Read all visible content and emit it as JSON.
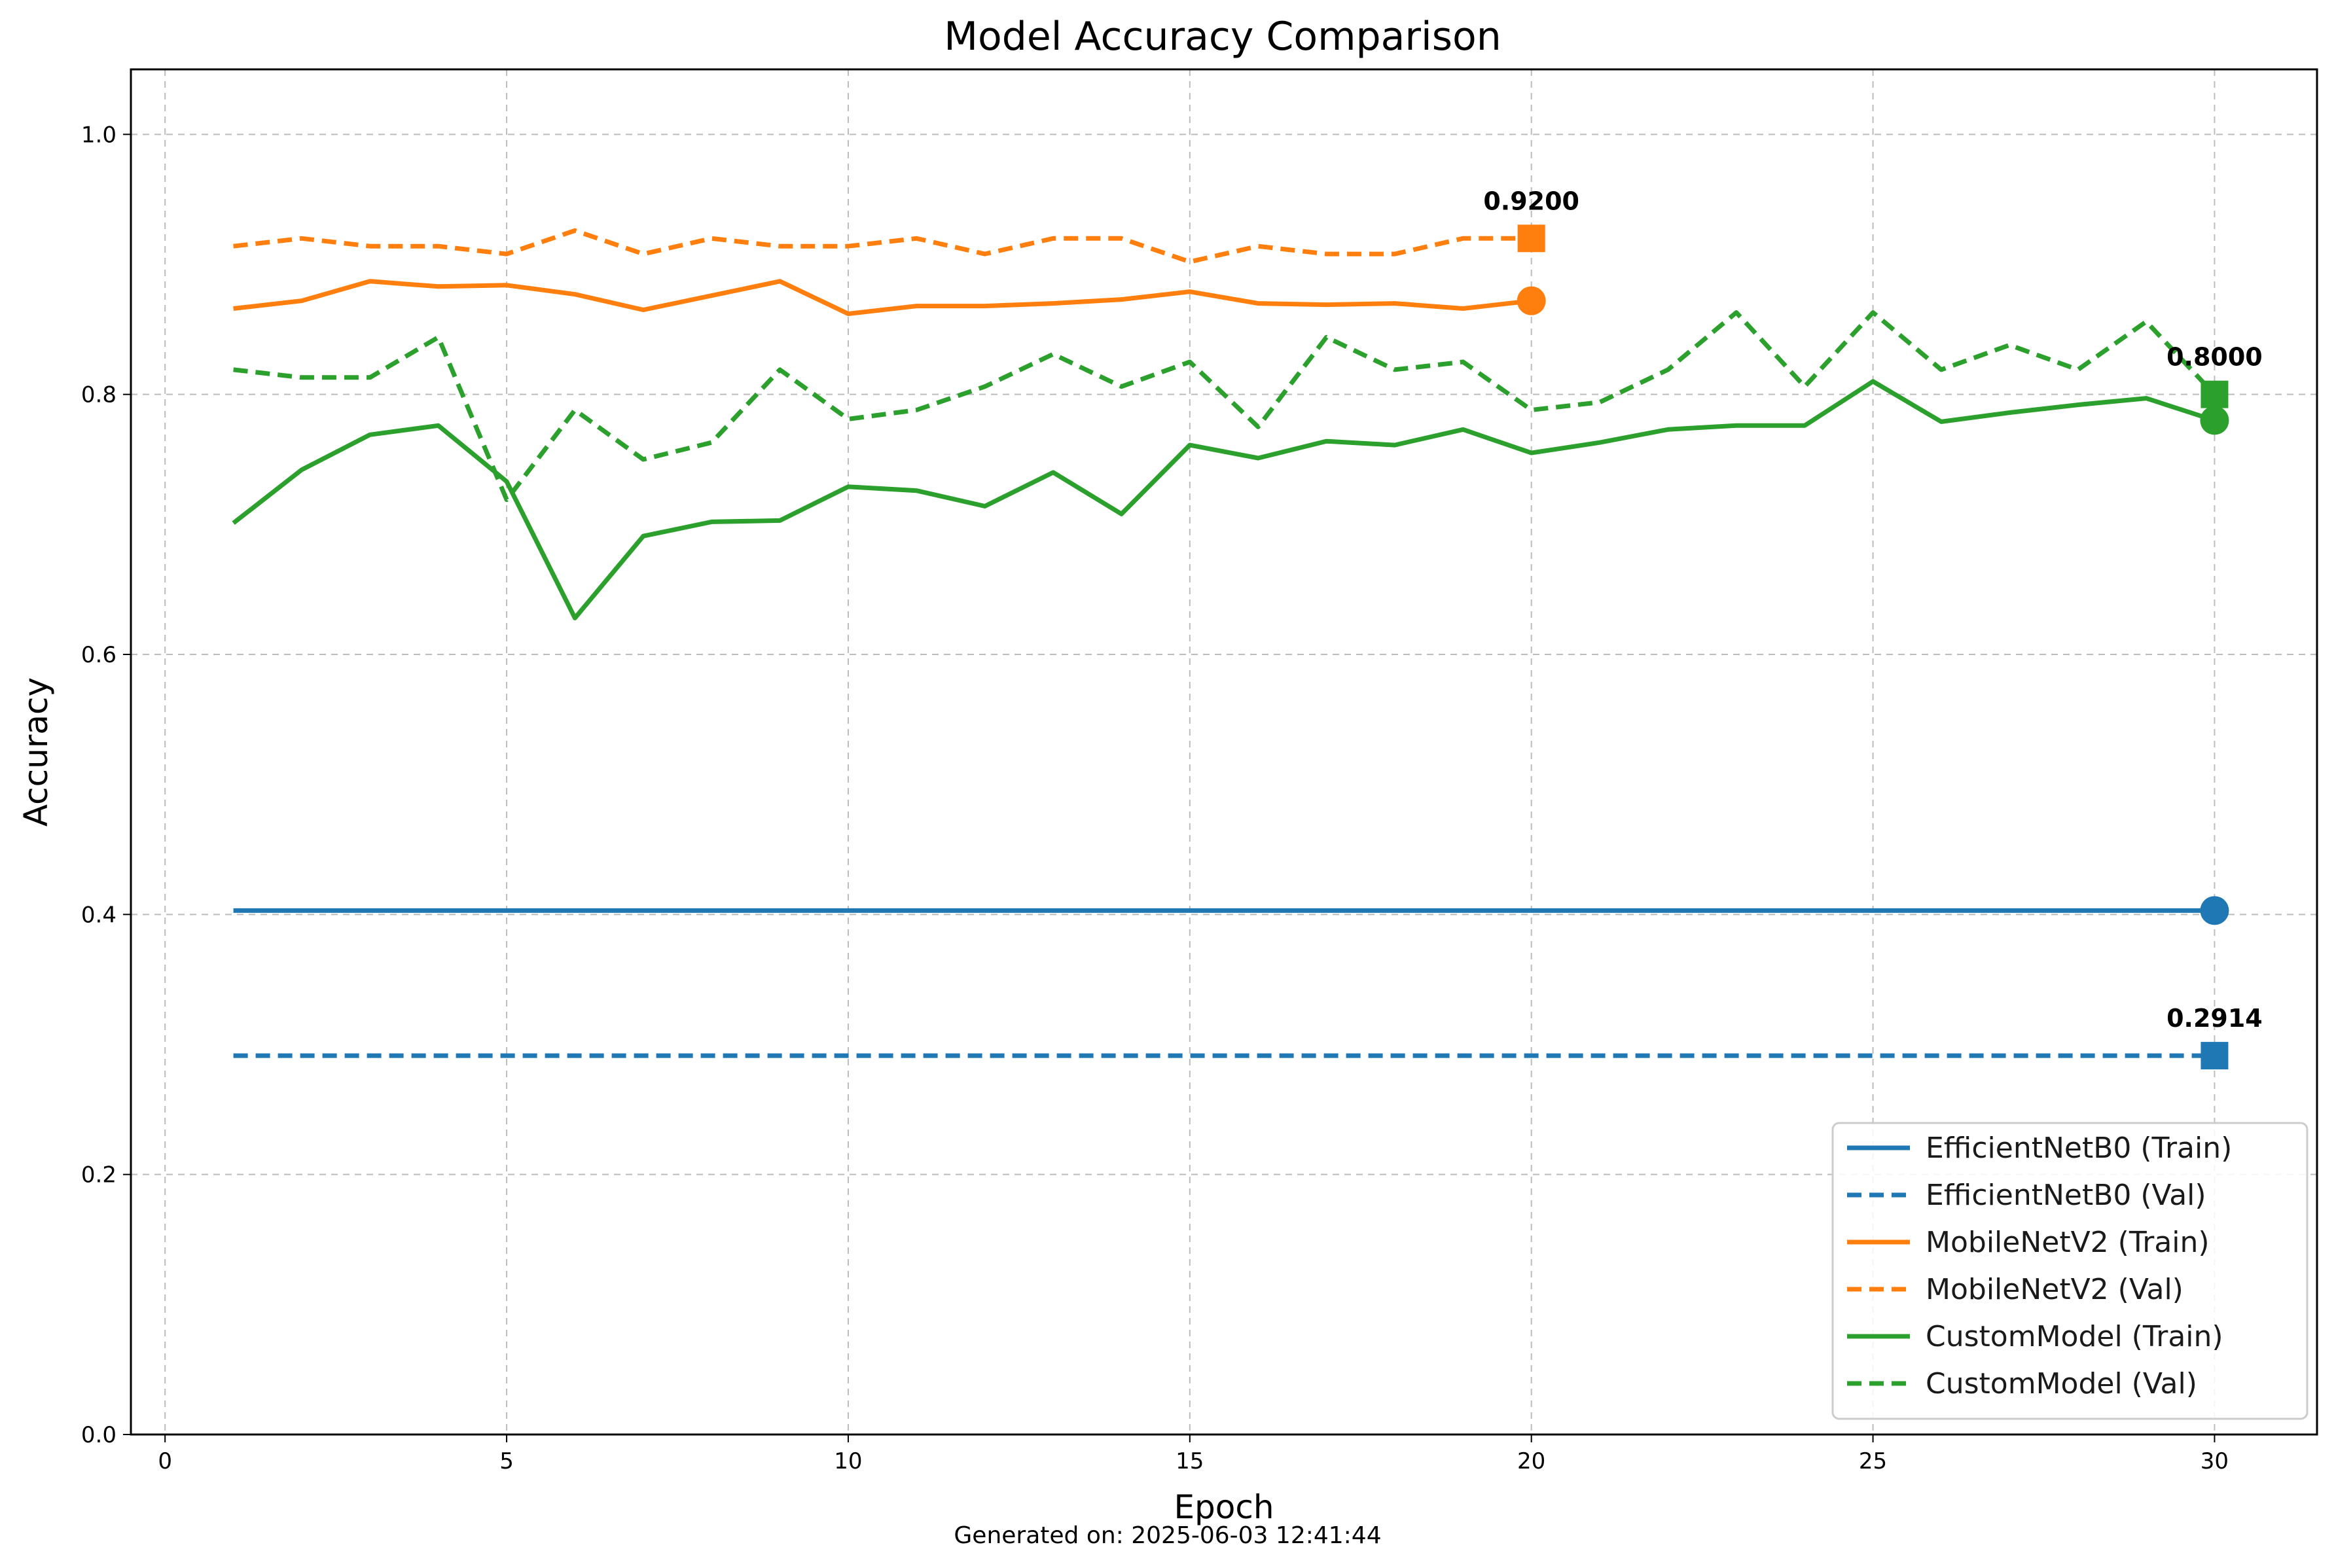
{
  "chart_data": {
    "type": "line",
    "title": "Model Accuracy Comparison",
    "xlabel": "Epoch",
    "ylabel": "Accuracy",
    "xlim": [
      -0.5,
      31.5
    ],
    "ylim": [
      0,
      1.05
    ],
    "xticks": [
      0,
      5,
      10,
      15,
      20,
      25,
      30
    ],
    "yticks": [
      0.0,
      0.2,
      0.4,
      0.6,
      0.8,
      1.0
    ],
    "xtick_labels": [
      "0",
      "5",
      "10",
      "15",
      "20",
      "25",
      "30"
    ],
    "ytick_labels": [
      "0.0",
      "0.2",
      "0.4",
      "0.6",
      "0.8",
      "1.0"
    ],
    "grid": true,
    "legend_position": "bottom-right",
    "series": [
      {
        "name": "EfficientNetB0 (Train)",
        "color": "#1f77b4",
        "style": "solid",
        "end_marker": "circle",
        "x": [
          1,
          2,
          3,
          4,
          5,
          6,
          7,
          8,
          9,
          10,
          11,
          12,
          13,
          14,
          15,
          16,
          17,
          18,
          19,
          20,
          21,
          22,
          23,
          24,
          25,
          26,
          27,
          28,
          29,
          30
        ],
        "y": [
          0.403,
          0.403,
          0.403,
          0.403,
          0.403,
          0.403,
          0.403,
          0.403,
          0.403,
          0.403,
          0.403,
          0.403,
          0.403,
          0.403,
          0.403,
          0.403,
          0.403,
          0.403,
          0.403,
          0.403,
          0.403,
          0.403,
          0.403,
          0.403,
          0.403,
          0.403,
          0.403,
          0.403,
          0.403,
          0.403
        ]
      },
      {
        "name": "EfficientNetB0 (Val)",
        "color": "#1f77b4",
        "style": "dashed",
        "end_marker": "square",
        "x": [
          1,
          2,
          3,
          4,
          5,
          6,
          7,
          8,
          9,
          10,
          11,
          12,
          13,
          14,
          15,
          16,
          17,
          18,
          19,
          20,
          21,
          22,
          23,
          24,
          25,
          26,
          27,
          28,
          29,
          30
        ],
        "y": [
          0.2914,
          0.2914,
          0.2914,
          0.2914,
          0.2914,
          0.2914,
          0.2914,
          0.2914,
          0.2914,
          0.2914,
          0.2914,
          0.2914,
          0.2914,
          0.2914,
          0.2914,
          0.2914,
          0.2914,
          0.2914,
          0.2914,
          0.2914,
          0.2914,
          0.2914,
          0.2914,
          0.2914,
          0.2914,
          0.2914,
          0.2914,
          0.2914,
          0.2914,
          0.2914
        ]
      },
      {
        "name": "MobileNetV2 (Train)",
        "color": "#ff7f0e",
        "style": "solid",
        "end_marker": "circle",
        "x": [
          1,
          2,
          3,
          4,
          5,
          6,
          7,
          8,
          9,
          10,
          11,
          12,
          13,
          14,
          15,
          16,
          17,
          18,
          19,
          20
        ],
        "y": [
          0.866,
          0.872,
          0.887,
          0.883,
          0.884,
          0.877,
          0.865,
          0.876,
          0.887,
          0.862,
          0.868,
          0.868,
          0.87,
          0.873,
          0.879,
          0.87,
          0.869,
          0.87,
          0.866,
          0.872
        ]
      },
      {
        "name": "MobileNetV2 (Val)",
        "color": "#ff7f0e",
        "style": "dashed",
        "end_marker": "square",
        "x": [
          1,
          2,
          3,
          4,
          5,
          6,
          7,
          8,
          9,
          10,
          11,
          12,
          13,
          14,
          15,
          16,
          17,
          18,
          19,
          20
        ],
        "y": [
          0.914,
          0.92,
          0.914,
          0.914,
          0.908,
          0.926,
          0.908,
          0.92,
          0.914,
          0.914,
          0.92,
          0.908,
          0.92,
          0.92,
          0.902,
          0.914,
          0.908,
          0.908,
          0.92,
          0.92
        ]
      },
      {
        "name": "CustomModel (Train)",
        "color": "#2ca02c",
        "style": "solid",
        "end_marker": "circle",
        "x": [
          1,
          2,
          3,
          4,
          5,
          6,
          7,
          8,
          9,
          10,
          11,
          12,
          13,
          14,
          15,
          16,
          17,
          18,
          19,
          20,
          21,
          22,
          23,
          24,
          25,
          26,
          27,
          28,
          29,
          30
        ],
        "y": [
          0.701,
          0.742,
          0.769,
          0.776,
          0.733,
          0.628,
          0.691,
          0.702,
          0.703,
          0.729,
          0.726,
          0.714,
          0.74,
          0.708,
          0.761,
          0.751,
          0.764,
          0.761,
          0.773,
          0.755,
          0.763,
          0.773,
          0.776,
          0.776,
          0.81,
          0.779,
          0.786,
          0.792,
          0.797,
          0.78
        ]
      },
      {
        "name": "CustomModel (Val)",
        "color": "#2ca02c",
        "style": "dashed",
        "end_marker": "square",
        "x": [
          1,
          2,
          3,
          4,
          5,
          6,
          7,
          8,
          9,
          10,
          11,
          12,
          13,
          14,
          15,
          16,
          17,
          18,
          19,
          20,
          21,
          22,
          23,
          24,
          25,
          26,
          27,
          28,
          29,
          30
        ],
        "y": [
          0.819,
          0.813,
          0.813,
          0.844,
          0.719,
          0.788,
          0.75,
          0.763,
          0.819,
          0.781,
          0.788,
          0.806,
          0.831,
          0.806,
          0.825,
          0.775,
          0.844,
          0.819,
          0.825,
          0.788,
          0.794,
          0.819,
          0.863,
          0.806,
          0.863,
          0.819,
          0.838,
          0.819,
          0.856,
          0.8
        ]
      }
    ],
    "annotations": [
      {
        "text": "0.9200",
        "x": 20,
        "y": 0.92
      },
      {
        "text": "0.8000",
        "x": 30,
        "y": 0.8
      },
      {
        "text": "0.2914",
        "x": 30,
        "y": 0.2914
      }
    ]
  },
  "footer": {
    "generated": "Generated on: 2025-06-03 12:41:44"
  }
}
